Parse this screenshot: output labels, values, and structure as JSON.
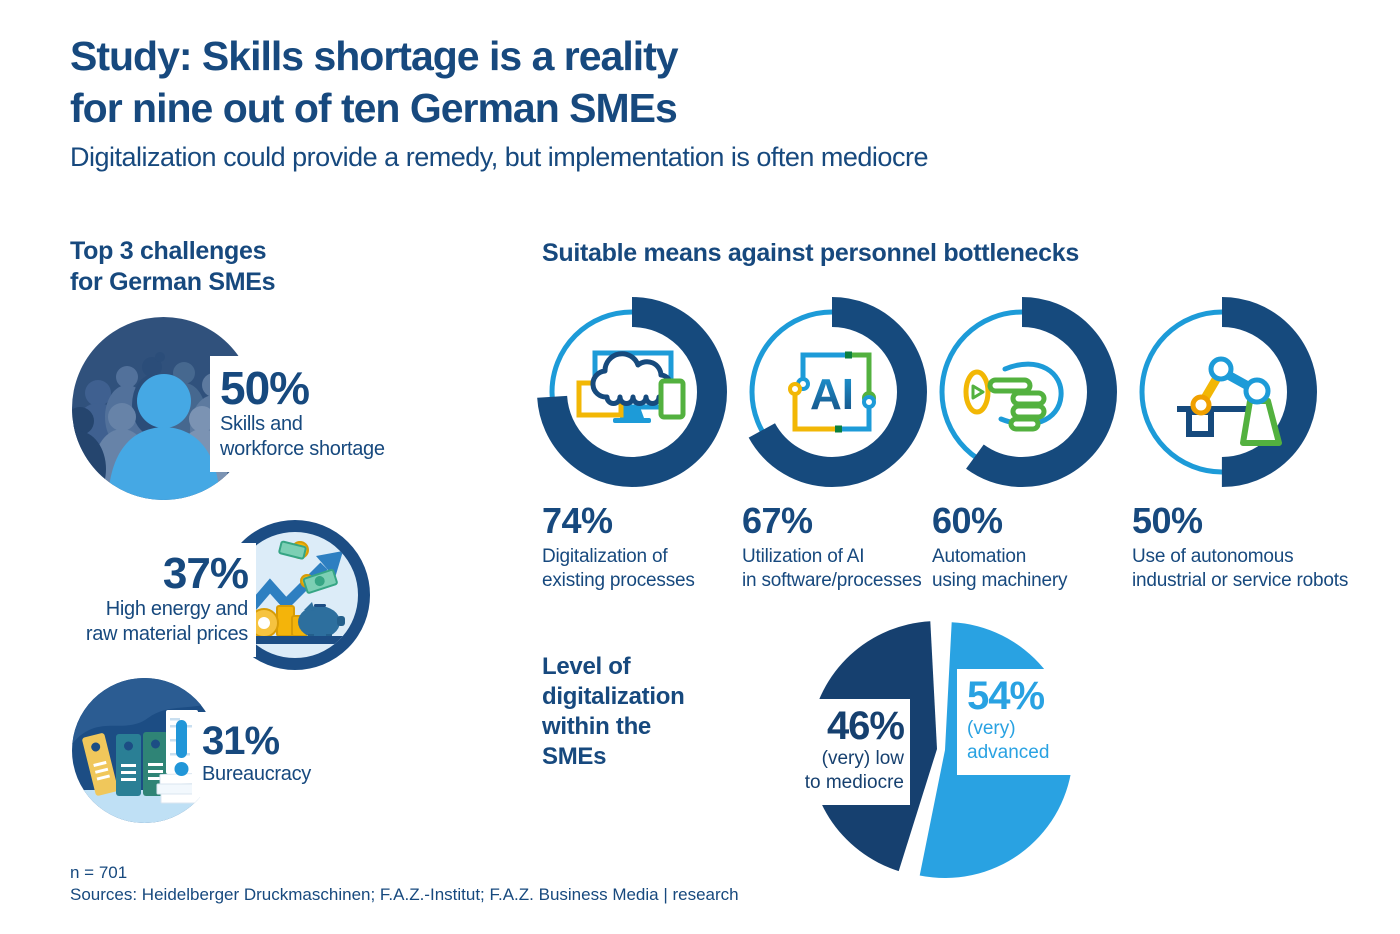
{
  "header": {
    "title_line1": "Study: Skills shortage is a reality",
    "title_line2": "for nine out of ten German SMEs",
    "subtitle": "Digitalization could provide a remedy, but implementation is often mediocre"
  },
  "challenges_section": {
    "heading_line1": "Top 3 challenges",
    "heading_line2": "for German SMEs"
  },
  "means_section": {
    "heading": "Suitable means against personnel bottlenecks"
  },
  "digitalization_section": {
    "heading_line1": "Level of",
    "heading_line2": "digitalization",
    "heading_line3": "within the",
    "heading_line4": "SMEs"
  },
  "footer": {
    "sample_size": "n = 701",
    "sources": "Sources: Heidelberger Druckmaschinen; F.A.Z.-Institut; F.A.Z. Business Media | research"
  },
  "colors": {
    "navy": "#17497e",
    "donut_arc": "#164a7d",
    "ring_blue": "#1d9bd8",
    "pie_dark": "#16406f",
    "pie_light": "#29a2e2",
    "person_blue": "#45a8e4",
    "yellow": "#f2b705",
    "green": "#53b13f"
  },
  "chart_data": [
    {
      "type": "pictogram",
      "title": "Top 3 challenges for German SMEs",
      "unit": "%",
      "items": [
        {
          "value": 50,
          "pct_label": "50%",
          "label_line1": "Skills and",
          "label_line2": "workforce shortage",
          "icon": "crowd-person-icon"
        },
        {
          "value": 37,
          "pct_label": "37%",
          "label_line1": "High energy and",
          "label_line2": "raw material prices",
          "icon": "money-growth-icon"
        },
        {
          "value": 31,
          "pct_label": "31%",
          "label_line1": "Bureaucracy",
          "label_line2": "",
          "icon": "binders-bureaucracy-icon"
        }
      ]
    },
    {
      "type": "donut-set",
      "title": "Suitable means against personnel bottlenecks",
      "unit": "%",
      "ring_style": "thin light-blue track, thick navy arc starting at 12 o'clock clockwise",
      "items": [
        {
          "value": 74,
          "pct_label": "74%",
          "label_line1": "Digitalization of",
          "label_line2": "existing processes",
          "icon": "devices-cloud-icon"
        },
        {
          "value": 67,
          "pct_label": "67%",
          "label_line1": "Utilization of AI",
          "label_line2": "in software/processes",
          "icon": "ai-circuit-icon",
          "icon_text": "AI"
        },
        {
          "value": 60,
          "pct_label": "60%",
          "label_line1": "Automation",
          "label_line2": "using machinery",
          "icon": "automation-hand-icon"
        },
        {
          "value": 50,
          "pct_label": "50%",
          "label_line1": "Use of autonomous",
          "label_line2": "industrial or service robots",
          "icon": "robot-arm-icon"
        }
      ]
    },
    {
      "type": "pie",
      "title": "Level of digitalization within the SMEs",
      "unit": "%",
      "slices": [
        {
          "value": 46,
          "pct_label": "46%",
          "label_line1": "(very) low",
          "label_line2": "to mediocre",
          "color": "#16406f",
          "start_deg": 197.4
        },
        {
          "value": 54,
          "pct_label": "54%",
          "label_line1": "(very) advanced",
          "label_line2": "",
          "color": "#29a2e2",
          "start_deg": 3
        }
      ]
    }
  ]
}
